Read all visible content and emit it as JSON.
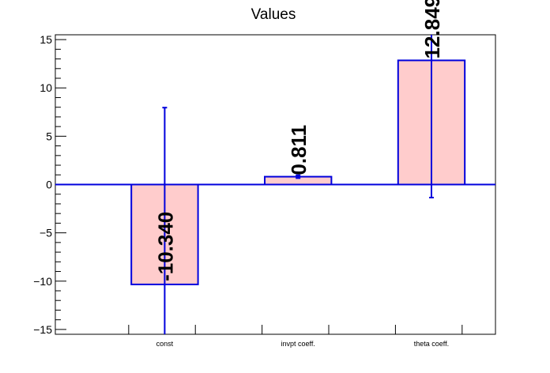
{
  "chart_data": {
    "type": "bar",
    "title": "Values",
    "categories": [
      "const",
      "invpt coeff.",
      "theta coeff."
    ],
    "values": [
      -10.34,
      0.811,
      12.849
    ],
    "value_labels": [
      "-10.340",
      "0.811",
      "12.849"
    ],
    "errors": [
      18.3,
      0.15,
      14.2
    ],
    "ylim": [
      -15.5,
      15.5
    ],
    "yticks": [
      -15,
      -10,
      -5,
      0,
      5,
      10,
      15
    ],
    "ytick_labels": [
      "−15",
      "−10",
      "−5",
      "0",
      "5",
      "10",
      "15"
    ],
    "xlabel": "",
    "ylabel": "",
    "grid": false,
    "colors": {
      "bar_fill": "#ffcccc",
      "bar_edge": "#0000dd",
      "axis": "#000000",
      "zero_line": "#0000dd"
    }
  }
}
